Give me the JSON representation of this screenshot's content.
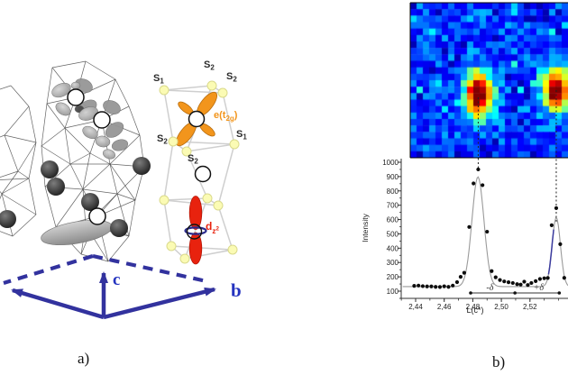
{
  "panel_a": {
    "caption": "a)",
    "axes": {
      "b_label": "b",
      "c_label": "c",
      "line_color": "#32329E",
      "label_color": "#2433BF"
    },
    "inset": {
      "s_label_base": "S",
      "s1_sub": "1",
      "s2_sub": "2",
      "s_labels": [
        "S1",
        "S2",
        "S2",
        "S2",
        "S2",
        "S1"
      ],
      "e_t2g": {
        "pre": "e(t",
        "sub": "2g",
        "post": ")",
        "color": "#F2951C"
      },
      "d_z2": {
        "pre": "d",
        "sub": "z",
        "sup": "2",
        "color": "#E8220E"
      },
      "sulfur_fill": "#FBFBB4",
      "sulfur_stroke": "#DADA8C",
      "prism_line_color": "#CFCFCF"
    },
    "structure": {
      "wire_color": "#4A4A4A",
      "lobe_fill_light": "#BCBCBC",
      "lobe_fill_dark": "#969696",
      "dark_sphere_color": "#2E2E2E",
      "disk_color": "#A9A9A9"
    }
  },
  "panel_b": {
    "caption": "b)",
    "chart_data": [
      {
        "type": "heatmap",
        "description": "pixelated diffuse X-ray scattering map, jet colormap, blue background with two red-core hotspots aligned with the diffraction peaks below",
        "grid": {
          "cols": 25,
          "rows": 24
        },
        "hotspots": [
          {
            "col": 10.3,
            "row": 13.7,
            "amp": 0.97,
            "sx": 1.5,
            "sy": 2.4
          },
          {
            "col": 22.6,
            "row": 13.0,
            "amp": 0.95,
            "sx": 1.5,
            "sy": 2.2
          }
        ],
        "noise": {
          "base": 0.1,
          "spread": 0.2,
          "seed": 7
        },
        "colormap": "jet"
      },
      {
        "type": "scatter+line",
        "xlabel": "L(c*)",
        "ylabel": "Intensity",
        "xlim": [
          2.431,
          2.547
        ],
        "ylim": [
          45,
          1000
        ],
        "xticks": [
          "2,44",
          "2,46",
          "2,48",
          "2,50",
          "2,52"
        ],
        "xtick_values": [
          2.44,
          2.46,
          2.48,
          2.5,
          2.52
        ],
        "yticks": [
          100,
          200,
          300,
          400,
          500,
          600,
          700,
          800,
          900,
          1000
        ],
        "points": [
          [
            2.439,
            137
          ],
          [
            2.442,
            139
          ],
          [
            2.445,
            135
          ],
          [
            2.448,
            133
          ],
          [
            2.451,
            133
          ],
          [
            2.454,
            130
          ],
          [
            2.457,
            129
          ],
          [
            2.46,
            134
          ],
          [
            2.463,
            130
          ],
          [
            2.466,
            139
          ],
          [
            2.469,
            163
          ],
          [
            2.4715,
            200
          ],
          [
            2.474,
            228
          ],
          [
            2.4775,
            548
          ],
          [
            2.4805,
            852
          ],
          [
            2.4838,
            950
          ],
          [
            2.4868,
            840
          ],
          [
            2.49,
            515
          ],
          [
            2.4932,
            240
          ],
          [
            2.496,
            197
          ],
          [
            2.499,
            178
          ],
          [
            2.502,
            168
          ],
          [
            2.505,
            162
          ],
          [
            2.508,
            157
          ],
          [
            2.511,
            149
          ],
          [
            2.5135,
            146
          ],
          [
            2.516,
            166
          ],
          [
            2.5185,
            143
          ],
          [
            2.521,
            157
          ],
          [
            2.524,
            170
          ],
          [
            2.527,
            185
          ],
          [
            2.53,
            190
          ],
          [
            2.5325,
            192
          ],
          [
            2.5352,
            560
          ],
          [
            2.5384,
            680
          ],
          [
            2.5412,
            428
          ],
          [
            2.544,
            193
          ]
        ],
        "fit": {
          "baseline": 132,
          "peaks": [
            {
              "center": 2.4836,
              "amp": 766,
              "sigma": 0.0042
            },
            {
              "center": 2.5384,
              "amp": 483,
              "sigma": 0.0029
            }
          ],
          "curve_color": "#9A9A9A",
          "blue_segment": {
            "from": 2.533,
            "to": 2.5366,
            "color": "#3B3B9E"
          }
        },
        "annotations": {
          "dashed_lines_x": [
            2.4838,
            2.5384
          ],
          "delta_line": {
            "x1": 2.4785,
            "x2": 2.5405,
            "mid": 2.5095,
            "label_minus": "-δ",
            "label_plus": "+δ",
            "minus_x": 2.492,
            "plus_x": 2.526
          }
        }
      }
    ]
  }
}
